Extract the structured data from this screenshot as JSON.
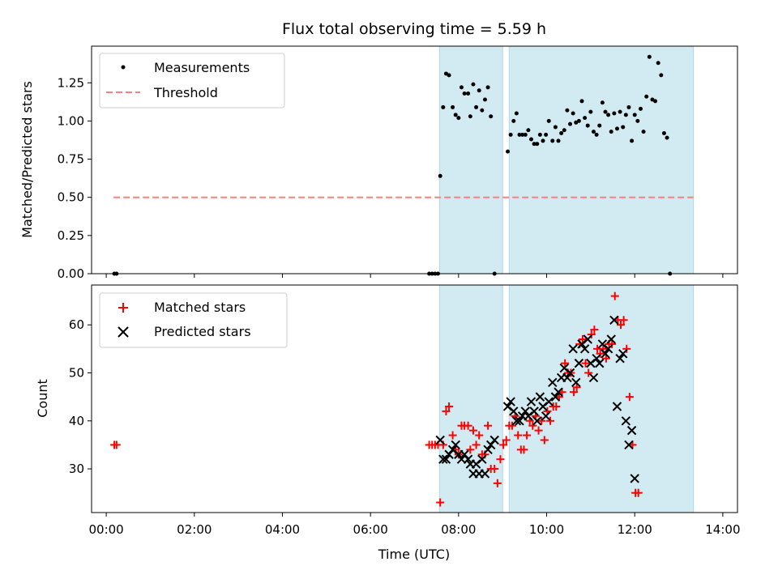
{
  "chart_data": {
    "title": "Flux total observing time = 5.59 h",
    "xlabel": "Time (UTC)",
    "x_ticks": [
      "00:00",
      "02:00",
      "04:00",
      "06:00",
      "08:00",
      "10:00",
      "12:00",
      "14:00"
    ],
    "shaded_intervals": [
      [
        "07:34",
        "09:00"
      ],
      [
        "09:09",
        "13:20"
      ]
    ],
    "shade_color": "#add8e6",
    "panels": [
      {
        "type": "scatter",
        "ylabel": "Matched/Predicted stars",
        "ylim": [
          0,
          1.49
        ],
        "y_ticks": [
          "0.00",
          "0.25",
          "0.50",
          "0.75",
          "1.00",
          "1.25"
        ],
        "legend_position": "upper left",
        "series": [
          {
            "name": "Measurements",
            "marker": "dot",
            "color": "#000000",
            "points": [
              [
                "00:11",
                0.0
              ],
              [
                "00:14",
                0.0
              ],
              [
                "07:20",
                0.0
              ],
              [
                "07:24",
                0.0
              ],
              [
                "07:28",
                0.0
              ],
              [
                "07:32",
                0.0
              ],
              [
                "07:35",
                0.64
              ],
              [
                "07:39",
                1.09
              ],
              [
                "07:43",
                1.31
              ],
              [
                "07:47",
                1.3
              ],
              [
                "07:52",
                1.09
              ],
              [
                "07:56",
                1.04
              ],
              [
                "08:00",
                1.02
              ],
              [
                "08:04",
                1.22
              ],
              [
                "08:08",
                1.18
              ],
              [
                "08:13",
                1.18
              ],
              [
                "08:16",
                1.03
              ],
              [
                "08:20",
                1.24
              ],
              [
                "08:24",
                1.09
              ],
              [
                "08:28",
                1.2
              ],
              [
                "08:32",
                1.07
              ],
              [
                "08:36",
                1.14
              ],
              [
                "08:40",
                1.22
              ],
              [
                "08:44",
                1.03
              ],
              [
                "08:49",
                0.0
              ],
              [
                "09:07",
                0.8
              ],
              [
                "09:11",
                0.91
              ],
              [
                "09:15",
                1.0
              ],
              [
                "09:19",
                1.05
              ],
              [
                "09:23",
                0.91
              ],
              [
                "09:27",
                0.91
              ],
              [
                "09:31",
                0.91
              ],
              [
                "09:35",
                0.94
              ],
              [
                "09:39",
                0.88
              ],
              [
                "09:43",
                0.85
              ],
              [
                "09:47",
                0.85
              ],
              [
                "09:51",
                0.91
              ],
              [
                "09:55",
                0.87
              ],
              [
                "09:59",
                0.91
              ],
              [
                "10:03",
                1.0
              ],
              [
                "10:08",
                0.87
              ],
              [
                "10:12",
                0.96
              ],
              [
                "10:16",
                0.87
              ],
              [
                "10:20",
                0.92
              ],
              [
                "10:24",
                0.94
              ],
              [
                "10:28",
                1.07
              ],
              [
                "10:32",
                0.98
              ],
              [
                "10:36",
                1.05
              ],
              [
                "10:40",
                0.99
              ],
              [
                "10:44",
                1.0
              ],
              [
                "10:48",
                1.13
              ],
              [
                "10:52",
                1.02
              ],
              [
                "10:56",
                0.97
              ],
              [
                "11:00",
                1.06
              ],
              [
                "11:04",
                0.93
              ],
              [
                "11:08",
                0.91
              ],
              [
                "11:12",
                0.97
              ],
              [
                "11:16",
                1.12
              ],
              [
                "11:20",
                1.06
              ],
              [
                "11:24",
                1.04
              ],
              [
                "11:28",
                0.93
              ],
              [
                "11:32",
                1.05
              ],
              [
                "11:36",
                0.95
              ],
              [
                "11:40",
                1.06
              ],
              [
                "11:44",
                0.96
              ],
              [
                "11:48",
                1.04
              ],
              [
                "11:52",
                1.09
              ],
              [
                "11:56",
                0.87
              ],
              [
                "12:00",
                1.04
              ],
              [
                "12:04",
                1.0
              ],
              [
                "12:08",
                1.08
              ],
              [
                "12:12",
                0.93
              ],
              [
                "12:16",
                1.16
              ],
              [
                "12:20",
                1.42
              ],
              [
                "12:24",
                1.14
              ],
              [
                "12:28",
                1.13
              ],
              [
                "12:32",
                1.38
              ],
              [
                "12:36",
                1.3
              ],
              [
                "12:40",
                0.92
              ],
              [
                "12:44",
                0.89
              ],
              [
                "12:48",
                0.0
              ]
            ]
          },
          {
            "name": "Threshold",
            "marker": "dashed-line",
            "color": "#ff7f7f",
            "points": [
              [
                "00:10",
                0.5
              ],
              [
                "13:20",
                0.5
              ]
            ]
          }
        ]
      },
      {
        "type": "scatter",
        "ylabel": "Count",
        "ylim": [
          20.9,
          68.3
        ],
        "y_ticks": [
          "30",
          "40",
          "50",
          "60"
        ],
        "legend_position": "upper left",
        "series": [
          {
            "name": "Matched stars",
            "marker": "plus",
            "color": "#ff0000",
            "points": [
              [
                "00:11",
                35
              ],
              [
                "00:14",
                35
              ],
              [
                "07:20",
                35
              ],
              [
                "07:24",
                35
              ],
              [
                "07:28",
                35
              ],
              [
                "07:32",
                35
              ],
              [
                "07:35",
                23
              ],
              [
                "07:39",
                35
              ],
              [
                "07:43",
                42
              ],
              [
                "07:47",
                43
              ],
              [
                "07:52",
                37
              ],
              [
                "07:56",
                34
              ],
              [
                "08:00",
                33
              ],
              [
                "08:04",
                39
              ],
              [
                "08:08",
                39
              ],
              [
                "08:13",
                39
              ],
              [
                "08:16",
                34
              ],
              [
                "08:20",
                38
              ],
              [
                "08:24",
                35
              ],
              [
                "08:28",
                37
              ],
              [
                "08:32",
                33
              ],
              [
                "08:36",
                33
              ],
              [
                "08:40",
                39
              ],
              [
                "08:44",
                30
              ],
              [
                "08:49",
                30
              ],
              [
                "08:53",
                27
              ],
              [
                "08:57",
                32
              ],
              [
                "09:01",
                35
              ],
              [
                "09:05",
                36
              ],
              [
                "09:09",
                39
              ],
              [
                "09:13",
                39
              ],
              [
                "09:17",
                41
              ],
              [
                "09:21",
                37
              ],
              [
                "09:25",
                34
              ],
              [
                "09:29",
                34
              ],
              [
                "09:33",
                37
              ],
              [
                "09:37",
                40
              ],
              [
                "09:41",
                39
              ],
              [
                "09:45",
                41
              ],
              [
                "09:49",
                38
              ],
              [
                "09:53",
                40
              ],
              [
                "09:57",
                36
              ],
              [
                "10:01",
                42
              ],
              [
                "10:05",
                40
              ],
              [
                "10:09",
                43
              ],
              [
                "10:13",
                43
              ],
              [
                "10:17",
                45
              ],
              [
                "10:21",
                46
              ],
              [
                "10:25",
                52
              ],
              [
                "10:29",
                50
              ],
              [
                "10:33",
                50
              ],
              [
                "10:37",
                46
              ],
              [
                "10:41",
                47
              ],
              [
                "10:45",
                56
              ],
              [
                "10:49",
                57
              ],
              [
                "10:53",
                52
              ],
              [
                "10:57",
                50
              ],
              [
                "11:01",
                58
              ],
              [
                "11:05",
                59
              ],
              [
                "11:09",
                55
              ],
              [
                "11:13",
                54
              ],
              [
                "11:17",
                55
              ],
              [
                "11:21",
                53
              ],
              [
                "11:25",
                56
              ],
              [
                "11:29",
                56
              ],
              [
                "11:33",
                66
              ],
              [
                "11:37",
                61
              ],
              [
                "11:41",
                60
              ],
              [
                "11:45",
                61
              ],
              [
                "11:49",
                55
              ],
              [
                "11:53",
                45
              ],
              [
                "11:57",
                35
              ],
              [
                "12:01",
                25
              ],
              [
                "12:05",
                25
              ]
            ]
          },
          {
            "name": "Predicted stars",
            "marker": "x",
            "color": "#000000",
            "points": [
              [
                "07:35",
                36
              ],
              [
                "07:39",
                32
              ],
              [
                "07:43",
                32
              ],
              [
                "07:47",
                33
              ],
              [
                "07:52",
                34
              ],
              [
                "07:56",
                35
              ],
              [
                "08:00",
                33
              ],
              [
                "08:04",
                32
              ],
              [
                "08:08",
                33
              ],
              [
                "08:13",
                32
              ],
              [
                "08:16",
                31
              ],
              [
                "08:20",
                29
              ],
              [
                "08:24",
                31
              ],
              [
                "08:28",
                29
              ],
              [
                "08:32",
                32
              ],
              [
                "08:36",
                29
              ],
              [
                "08:40",
                34
              ],
              [
                "08:44",
                35
              ],
              [
                "08:49",
                36
              ],
              [
                "09:07",
                43
              ],
              [
                "09:11",
                44
              ],
              [
                "09:15",
                42
              ],
              [
                "09:19",
                40
              ],
              [
                "09:23",
                40
              ],
              [
                "09:27",
                41
              ],
              [
                "09:31",
                42
              ],
              [
                "09:35",
                41
              ],
              [
                "09:39",
                44
              ],
              [
                "09:43",
                42
              ],
              [
                "09:47",
                40
              ],
              [
                "09:51",
                45
              ],
              [
                "09:55",
                43
              ],
              [
                "09:59",
                41
              ],
              [
                "10:03",
                44
              ],
              [
                "10:08",
                48
              ],
              [
                "10:12",
                45
              ],
              [
                "10:16",
                46
              ],
              [
                "10:20",
                49
              ],
              [
                "10:24",
                51
              ],
              [
                "10:28",
                49
              ],
              [
                "10:32",
                50
              ],
              [
                "10:36",
                55
              ],
              [
                "10:40",
                48
              ],
              [
                "10:44",
                52
              ],
              [
                "10:48",
                56
              ],
              [
                "10:52",
                55
              ],
              [
                "10:56",
                57
              ],
              [
                "11:00",
                52
              ],
              [
                "11:04",
                49
              ],
              [
                "11:08",
                53
              ],
              [
                "11:12",
                52
              ],
              [
                "11:16",
                56
              ],
              [
                "11:20",
                54
              ],
              [
                "11:24",
                55
              ],
              [
                "11:28",
                57
              ],
              [
                "11:32",
                61
              ],
              [
                "11:36",
                43
              ],
              [
                "11:40",
                53
              ],
              [
                "11:44",
                54
              ],
              [
                "11:48",
                40
              ],
              [
                "11:52",
                35
              ],
              [
                "11:56",
                38
              ],
              [
                "12:00",
                28
              ]
            ]
          }
        ]
      }
    ]
  }
}
